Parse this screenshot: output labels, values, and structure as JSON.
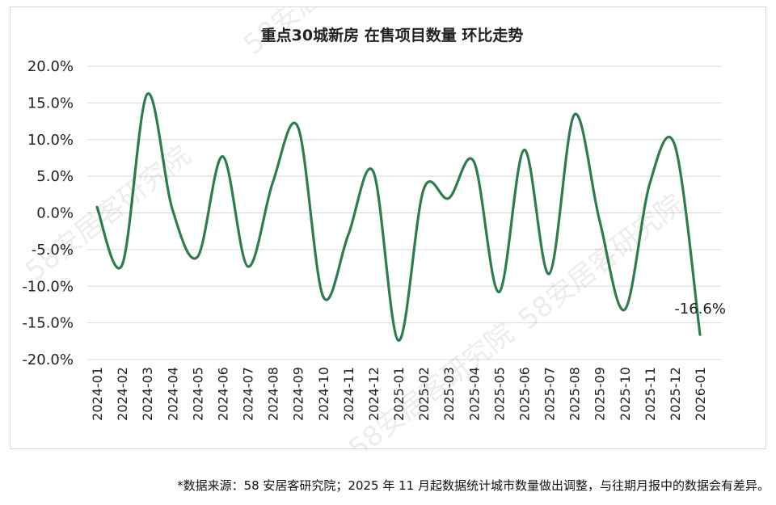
{
  "chart_data": {
    "type": "line",
    "title": "重点30城新房 在售项目数量 环比走势",
    "xlabel": "",
    "ylabel": "",
    "ylim": [
      -20,
      20
    ],
    "yticks": [
      20,
      15,
      10,
      5,
      0,
      -5,
      -10,
      -15,
      -20
    ],
    "ytick_labels": [
      "20.0%",
      "15.0%",
      "10.0%",
      "5.0%",
      "0.0%",
      "-5.0%",
      "-10.0%",
      "-15.0%",
      "-20.0%"
    ],
    "categories": [
      "2024-01",
      "2024-02",
      "2024-03",
      "2024-04",
      "2024-05",
      "2024-06",
      "2024-07",
      "2024-08",
      "2024-09",
      "2024-10",
      "2024-11",
      "2024-12",
      "2025-01",
      "2025-02",
      "2025-03",
      "2025-04",
      "2025-05",
      "2025-06",
      "2025-07",
      "2025-08",
      "2025-09",
      "2025-10",
      "2025-11",
      "2025-12",
      "2026-01"
    ],
    "series": [
      {
        "values": [
          0.8,
          -7.1,
          16.2,
          0.5,
          -6.0,
          7.7,
          -7.3,
          4.2,
          11.7,
          -11.4,
          -3.0,
          5.6,
          -17.4,
          3.2,
          2.0,
          7.0,
          -10.8,
          8.6,
          -8.3,
          13.4,
          -1.0,
          -13.2,
          4.0,
          9.2,
          -16.6
        ],
        "color": "#2e7d4f"
      }
    ],
    "data_labels": [
      {
        "index": 24,
        "text": "-16.6%"
      }
    ],
    "grid": true,
    "legend": "none"
  },
  "footnote": "*数据来源：58 安居客研究院；2025 年 11 月起数据统计城市数量做出调整，与往期月报中的数据会有差异。",
  "watermark": "58安居客研究院"
}
